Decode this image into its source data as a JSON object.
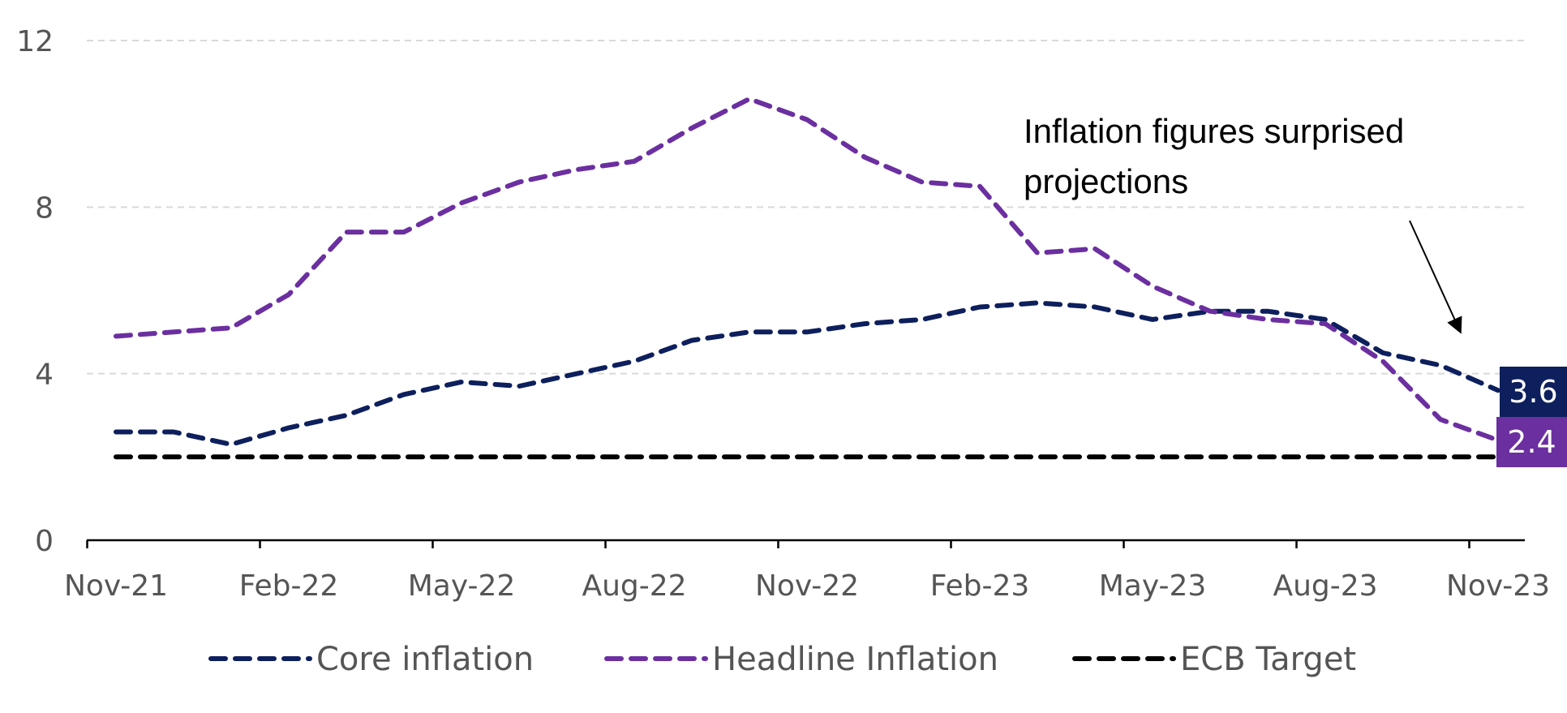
{
  "chart_data": {
    "type": "line",
    "x": [
      "Nov-21",
      "Dec-21",
      "Jan-22",
      "Feb-22",
      "Mar-22",
      "Apr-22",
      "May-22",
      "Jun-22",
      "Jul-22",
      "Aug-22",
      "Sep-22",
      "Oct-22",
      "Nov-22",
      "Dec-22",
      "Jan-23",
      "Feb-23",
      "Mar-23",
      "Apr-23",
      "May-23",
      "Jun-23",
      "Jul-23",
      "Aug-23",
      "Sep-23",
      "Oct-23",
      "Nov-23"
    ],
    "x_tick_labels": [
      "Nov-21",
      "Feb-22",
      "May-22",
      "Aug-22",
      "Nov-22",
      "Feb-23",
      "May-23",
      "Aug-23",
      "Nov-23"
    ],
    "y_ticks": [
      "0",
      "4",
      "8",
      "12"
    ],
    "ylim": [
      0,
      12
    ],
    "grid": true,
    "legend_position": "bottom",
    "series": [
      {
        "name": "Core inflation",
        "color": "#0d1f5c",
        "values": [
          2.6,
          2.6,
          2.3,
          2.7,
          3.0,
          3.5,
          3.8,
          3.7,
          4.0,
          4.3,
          4.8,
          5.0,
          5.0,
          5.2,
          5.3,
          5.6,
          5.7,
          5.6,
          5.3,
          5.5,
          5.5,
          5.3,
          4.5,
          4.2,
          3.6
        ],
        "end_label": "3.6"
      },
      {
        "name": "Headline Inflation",
        "color": "#6b2fa0",
        "values": [
          4.9,
          5.0,
          5.1,
          5.9,
          7.4,
          7.4,
          8.1,
          8.6,
          8.9,
          9.1,
          9.9,
          10.6,
          10.1,
          9.2,
          8.6,
          8.5,
          6.9,
          7.0,
          6.1,
          5.5,
          5.3,
          5.2,
          4.3,
          2.9,
          2.4
        ],
        "end_label": "2.4"
      },
      {
        "name": "ECB Target",
        "color": "#000000",
        "values": [
          2,
          2,
          2,
          2,
          2,
          2,
          2,
          2,
          2,
          2,
          2,
          2,
          2,
          2,
          2,
          2,
          2,
          2,
          2,
          2,
          2,
          2,
          2,
          2,
          2
        ]
      }
    ],
    "annotation": {
      "lines": [
        "Inflation figures surprised",
        "projections"
      ]
    }
  }
}
